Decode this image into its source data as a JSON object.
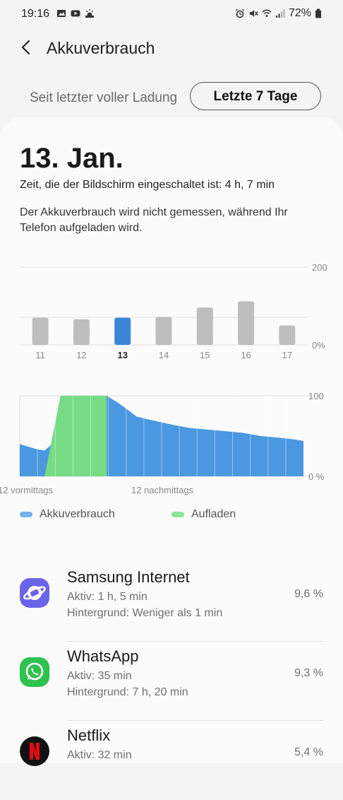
{
  "status_bar": {
    "time": "19:16",
    "battery": "72%",
    "left_icons": [
      "gallery-icon",
      "youtube-icon",
      "weather-icon"
    ],
    "right_icons": [
      "alarm-icon",
      "mute-icon",
      "wifi-icon",
      "signal-icon",
      "battery-icon"
    ]
  },
  "header": {
    "title": "Akkuverbrauch"
  },
  "range_tabs": {
    "since_full_charge": "Seit letzter voller Ladung",
    "last_7_days": "Letzte 7 Tage",
    "selected": "last_7_days"
  },
  "day": {
    "date": "13. Jan.",
    "screen_time": "Zeit, die der Bildschirm eingeschaltet ist: 4 h, 7 min",
    "notice": "Der Akkuverbrauch wird nicht gemessen, während Ihr Telefon aufgeladen wird."
  },
  "chart_data": [
    {
      "type": "bar",
      "categories": [
        "11",
        "12",
        "13",
        "14",
        "15",
        "16",
        "17"
      ],
      "values": [
        70,
        66,
        70,
        72,
        96,
        112,
        50
      ],
      "selected_index": 2,
      "ylim": [
        0,
        200
      ],
      "ytick_labels": [
        "200",
        "0%"
      ],
      "colors": {
        "default": "#bdbdbd",
        "selected": "#3a87d6"
      }
    },
    {
      "type": "area",
      "ylim": [
        0,
        100
      ],
      "ytick_labels": [
        "100",
        "0 %"
      ],
      "xtick_labels": [
        "12 vormittags",
        "12 nachmittags"
      ],
      "series": [
        {
          "name": "Akkuverbrauch",
          "color": "#4a98e0",
          "x": [
            0,
            0.9,
            1.4,
            4.9,
            5.5,
            6.0,
            6.6,
            7.4,
            8.6,
            9.6,
            10.6,
            11.6,
            12.6,
            13.6,
            14.6,
            15.4,
            16.0
          ],
          "y": [
            40,
            34,
            32,
            100,
            92,
            84,
            74,
            70,
            64,
            60,
            58,
            56,
            54,
            50,
            48,
            46,
            44
          ]
        },
        {
          "name": "Aufladen",
          "color": "#77db86",
          "x": [
            1.4,
            2.3,
            4.9
          ],
          "y": [
            0,
            100,
            100
          ]
        }
      ],
      "x_segments": 16
    }
  ],
  "legend": [
    {
      "label": "Akkuverbrauch",
      "color": "#74b4ec"
    },
    {
      "label": "Aufladen",
      "color": "#8fe29a"
    }
  ],
  "apps": [
    {
      "name": "Samsung Internet",
      "active": "Aktiv: 1 h, 5 min",
      "background": "Hintergrund: Weniger als 1 min",
      "percent": "9,6 %",
      "icon": "samsung-internet-icon"
    },
    {
      "name": "WhatsApp",
      "active": "Aktiv: 35 min",
      "background": "Hintergrund: 7 h, 20 min",
      "percent": "9,3 %",
      "icon": "whatsapp-icon"
    },
    {
      "name": "Netflix",
      "active": "Aktiv: 32 min",
      "background": "",
      "percent": "5,4 %",
      "icon": "netflix-icon"
    }
  ]
}
